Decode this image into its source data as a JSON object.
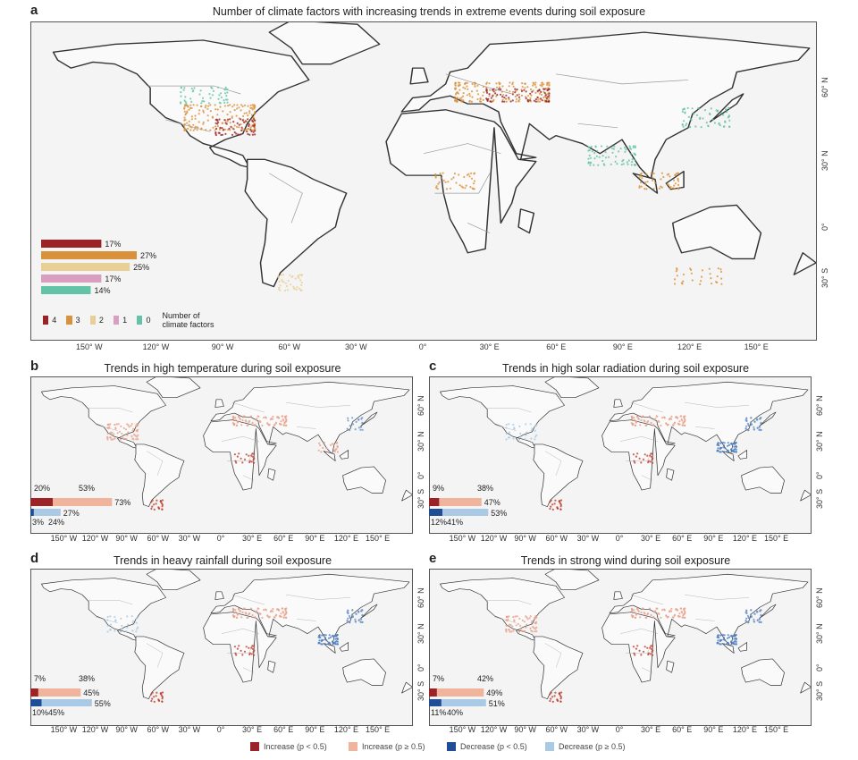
{
  "panels": {
    "a": {
      "label": "a",
      "title": "Number of climate factors with increasing trends in extreme events during soil exposure"
    },
    "b": {
      "label": "b",
      "title": "Trends in high temperature during soil exposure"
    },
    "c": {
      "label": "c",
      "title": "Trends in high solar radiation during soil exposure"
    },
    "d": {
      "label": "d",
      "title": "Trends in heavy rainfall during soil exposure"
    },
    "e": {
      "label": "e",
      "title": "Trends in strong wind during soil exposure"
    }
  },
  "axes": {
    "lon_ticks_a": [
      "150° W",
      "120° W",
      "90° W",
      "60° W",
      "30° W",
      "0°",
      "30° E",
      "60° E",
      "90° E",
      "120° E",
      "150° E"
    ],
    "lat_ticks_a": [
      "60° N",
      "30° N",
      "0°",
      "30° S"
    ],
    "lon_ticks_small": [
      "150° W",
      "120° W",
      "90° W",
      "60° W",
      "30° W",
      "0°",
      "30° E",
      "60° E",
      "90° E",
      "120° E",
      "150° E"
    ],
    "lat_ticks_small": [
      "60° N",
      "30° N",
      "0°",
      "30° S"
    ]
  },
  "legend_a": {
    "title": "Number of climate factors",
    "items": [
      {
        "label": "4",
        "color": "#9b2226"
      },
      {
        "label": "3",
        "color": "#d9913b"
      },
      {
        "label": "2",
        "color": "#e8cf96"
      },
      {
        "label": "1",
        "color": "#d99fc0"
      },
      {
        "label": "0",
        "color": "#63c3a6"
      }
    ]
  },
  "bottom_legend": [
    {
      "label": "Increase (p < 0.5)",
      "color": "#9b2226"
    },
    {
      "label": "Increase (p ≥ 0.5)",
      "color": "#f0b49c"
    },
    {
      "label": "Decrease (p < 0.5)",
      "color": "#1f4e96"
    },
    {
      "label": "Decrease (p ≥ 0.5)",
      "color": "#a9c9e4"
    }
  ],
  "chart_data": [
    {
      "panel": "a",
      "type": "bar",
      "orientation": "horizontal",
      "title": "Number of climate factors with increasing trends in extreme events during soil exposure",
      "categories": [
        "4",
        "3",
        "2",
        "1",
        "0"
      ],
      "values": [
        17,
        27,
        25,
        17,
        14
      ],
      "value_labels": [
        "17%",
        "27%",
        "25%",
        "17%",
        "14%"
      ],
      "colors": [
        "#9b2226",
        "#d9913b",
        "#e8cf96",
        "#d99fc0",
        "#63c3a6"
      ],
      "legend_title": "Number of climate factors"
    },
    {
      "panel": "b",
      "type": "bar",
      "title": "Trends in high temperature during soil exposure",
      "increase": {
        "significant": 20,
        "non_significant": 53,
        "total": 73,
        "labels": [
          "20%",
          "53%",
          "73%"
        ]
      },
      "decrease": {
        "significant": 3,
        "non_significant": 24,
        "total": 27,
        "labels": [
          "3%",
          "24%",
          "27%"
        ]
      }
    },
    {
      "panel": "c",
      "type": "bar",
      "title": "Trends in high solar radiation during soil exposure",
      "increase": {
        "significant": 9,
        "non_significant": 38,
        "total": 47,
        "labels": [
          "9%",
          "38%",
          "47%"
        ]
      },
      "decrease": {
        "significant": 12,
        "non_significant": 41,
        "total": 53,
        "labels": [
          "12%",
          "41%",
          "53%"
        ]
      }
    },
    {
      "panel": "d",
      "type": "bar",
      "title": "Trends in heavy rainfall during soil exposure",
      "increase": {
        "significant": 7,
        "non_significant": 38,
        "total": 45,
        "labels": [
          "7%",
          "38%",
          "45%"
        ]
      },
      "decrease": {
        "significant": 10,
        "non_significant": 45,
        "total": 55,
        "labels": [
          "10%",
          "45%",
          "55%"
        ]
      }
    },
    {
      "panel": "e",
      "type": "bar",
      "title": "Trends in strong wind during soil exposure",
      "increase": {
        "significant": 7,
        "non_significant": 42,
        "total": 49,
        "labels": [
          "7%",
          "42%",
          "49%"
        ]
      },
      "decrease": {
        "significant": 11,
        "non_significant": 40,
        "total": 51,
        "labels": [
          "11%",
          "40%",
          "51%"
        ]
      }
    }
  ]
}
